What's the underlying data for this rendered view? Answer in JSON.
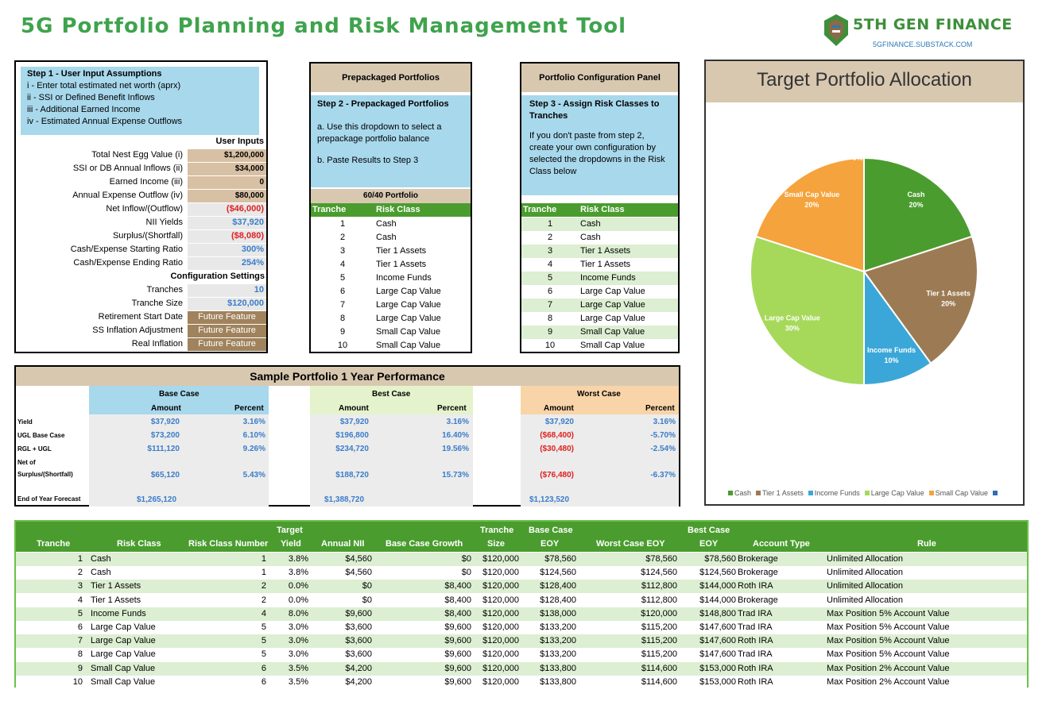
{
  "title": "5G Portfolio Planning and Risk Management Tool",
  "logo": {
    "name": "5TH GEN FINANCE",
    "sub": "5GFINANCE.SUBSTACK.COM"
  },
  "step1": {
    "heading": "Step 1 - User Input Assumptions",
    "lines": [
      "i - Enter total estimated net worth (aprx)",
      "ii - SSI or Defined Benefit Inflows",
      "iii - Additional Earned Income",
      "iv - Estimated Annual Expense Outflows"
    ],
    "user_inputs_label": "User Inputs",
    "rows": [
      {
        "label": "Total Nest Egg Value (i)",
        "value": "$1,200,000"
      },
      {
        "label": "SSI or DB Annual Inflows (ii)",
        "value": "$34,000"
      },
      {
        "label": "Earned Income (iii)",
        "value": "0"
      },
      {
        "label": "Annual Expense Outflow (iv)",
        "value": "$80,000"
      },
      {
        "label": "Net Inflow/(Outflow)",
        "value": "($46,000)"
      },
      {
        "label": "NII Yields",
        "value": "$37,920"
      },
      {
        "label": "Surplus/(Shortfall)",
        "value": "($8,080)"
      },
      {
        "label": "Cash/Expense Starting Ratio",
        "value": "300%"
      },
      {
        "label": "Cash/Expense Ending Ratio",
        "value": "254%"
      }
    ],
    "config_label": "Configuration Settings",
    "config_rows": [
      {
        "label": "Tranches",
        "value": "10"
      },
      {
        "label": "Tranche Size",
        "value": "$120,000"
      },
      {
        "label": "Retirement Start Date",
        "value": "Future Feature"
      },
      {
        "label": "SS Inflation Adjustment",
        "value": "Future Feature"
      },
      {
        "label": "Real Inflation",
        "value": "Future Feature"
      }
    ]
  },
  "step2": {
    "panel_title": "Prepackaged Portfolios",
    "heading": "Step 2 - Prepackaged Portfolios",
    "line_a": "a. Use this dropdown to select a prepackage portfolio balance",
    "line_b": "b. Paste Results to Step 3",
    "selected": "60/40 Portfolio",
    "col_tranche": "Tranche",
    "col_risk": "Risk Class",
    "rows": [
      {
        "n": "1",
        "c": "Cash"
      },
      {
        "n": "2",
        "c": "Cash"
      },
      {
        "n": "3",
        "c": "Tier 1 Assets"
      },
      {
        "n": "4",
        "c": "Tier 1 Assets"
      },
      {
        "n": "5",
        "c": "Income Funds"
      },
      {
        "n": "6",
        "c": "Large Cap Value"
      },
      {
        "n": "7",
        "c": "Large Cap Value"
      },
      {
        "n": "8",
        "c": "Large Cap Value"
      },
      {
        "n": "9",
        "c": "Small Cap Value"
      },
      {
        "n": "10",
        "c": "Small Cap Value"
      }
    ]
  },
  "step3": {
    "panel_title": "Portfolio Configuration Panel",
    "heading": "Step 3 - Assign Risk Classes to Tranches",
    "text": "If you don't paste from step 2, create your own configuration by selected the dropdowns in the Risk Class below",
    "col_tranche": "Tranche",
    "col_risk": "Risk Class",
    "rows": [
      {
        "n": "1",
        "c": "Cash"
      },
      {
        "n": "2",
        "c": "Cash"
      },
      {
        "n": "3",
        "c": "Tier 1 Assets"
      },
      {
        "n": "4",
        "c": "Tier 1 Assets"
      },
      {
        "n": "5",
        "c": "Income Funds"
      },
      {
        "n": "6",
        "c": "Large Cap Value"
      },
      {
        "n": "7",
        "c": "Large Cap Value"
      },
      {
        "n": "8",
        "c": "Large Cap Value"
      },
      {
        "n": "9",
        "c": "Small Cap Value"
      },
      {
        "n": "10",
        "c": "Small Cap Value"
      }
    ]
  },
  "sample": {
    "title": "Sample Portfolio 1 Year Performance",
    "base": "Base Case",
    "best": "Best Case",
    "worst": "Worst Case",
    "amount": "Amount",
    "percent": "Percent",
    "row_labels": [
      "Yield",
      "UGL Base Case",
      "RGL + UGL",
      "Net of",
      "Surplus/(Shortfall)",
      "End of Year Forecast"
    ],
    "base_vals": [
      [
        "$37,920",
        "3.16%"
      ],
      [
        "$73,200",
        "6.10%"
      ],
      [
        "$111,120",
        "9.26%"
      ],
      [
        "$65,120",
        "5.43%"
      ],
      [
        "$1,265,120",
        ""
      ]
    ],
    "best_vals": [
      [
        "$37,920",
        "3.16%"
      ],
      [
        "$196,800",
        "16.40%"
      ],
      [
        "$234,720",
        "19.56%"
      ],
      [
        "$188,720",
        "15.73%"
      ],
      [
        "$1,388,720",
        ""
      ]
    ],
    "worst_vals": [
      [
        "$37,920",
        "3.16%"
      ],
      [
        "($68,400)",
        "-5.70%"
      ],
      [
        "($30,480)",
        "-2.54%"
      ],
      [
        "($76,480)",
        "-6.37%"
      ],
      [
        "$1,123,520",
        ""
      ]
    ]
  },
  "chart_data": {
    "type": "pie",
    "title": "Target Portfolio Allocation",
    "labels": [
      "Cash",
      "Tier 1 Assets",
      "Income Funds",
      "Large Cap Value",
      "Small Cap Value",
      ""
    ],
    "values": [
      20,
      20,
      10,
      30,
      20,
      0
    ],
    "colors": [
      "#4a9c2e",
      "#9c7b54",
      "#3ba7d8",
      "#a6d95a",
      "#f5a33c",
      "#2f6db5"
    ],
    "legend": "bottom"
  },
  "tranche_table": {
    "headers": {
      "tranche": "Tranche",
      "risk_class": "Risk Class",
      "risk_num": "Risk Class Number",
      "target": "Target",
      "yield": "Yield",
      "nii": "Annual NII",
      "base_growth": "Base Case Growth",
      "tranche2": "Tranche",
      "size": "Size",
      "base_case": "Base Case",
      "eoy": "EOY",
      "worst_eoy": "Worst Case EOY",
      "best_case": "Best Case",
      "eoy2": "EOY",
      "account": "Account Type",
      "rule": "Rule"
    },
    "rows": [
      {
        "t": "1",
        "rc": "Cash",
        "rn": "1",
        "y": "3.8%",
        "nii": "$4,560",
        "bg": "$0",
        "sz": "$120,000",
        "be": "$78,560",
        "we": "$78,560",
        "bs": "$78,560",
        "acct": "Brokerage",
        "rule": "Unlimited Allocation"
      },
      {
        "t": "2",
        "rc": "Cash",
        "rn": "1",
        "y": "3.8%",
        "nii": "$4,560",
        "bg": "$0",
        "sz": "$120,000",
        "be": "$124,560",
        "we": "$124,560",
        "bs": "$124,560",
        "acct": "Brokerage",
        "rule": "Unlimited Allocation"
      },
      {
        "t": "3",
        "rc": "Tier 1 Assets",
        "rn": "2",
        "y": "0.0%",
        "nii": "$0",
        "bg": "$8,400",
        "sz": "$120,000",
        "be": "$128,400",
        "we": "$112,800",
        "bs": "$144,000",
        "acct": "Roth IRA",
        "rule": "Unlimited Allocation"
      },
      {
        "t": "4",
        "rc": "Tier 1 Assets",
        "rn": "2",
        "y": "0.0%",
        "nii": "$0",
        "bg": "$8,400",
        "sz": "$120,000",
        "be": "$128,400",
        "we": "$112,800",
        "bs": "$144,000",
        "acct": "Brokerage",
        "rule": "Unlimited Allocation"
      },
      {
        "t": "5",
        "rc": "Income Funds",
        "rn": "4",
        "y": "8.0%",
        "nii": "$9,600",
        "bg": "$8,400",
        "sz": "$120,000",
        "be": "$138,000",
        "we": "$120,000",
        "bs": "$148,800",
        "acct": "Trad IRA",
        "rule": "Max Position 5% Account Value"
      },
      {
        "t": "6",
        "rc": "Large Cap Value",
        "rn": "5",
        "y": "3.0%",
        "nii": "$3,600",
        "bg": "$9,600",
        "sz": "$120,000",
        "be": "$133,200",
        "we": "$115,200",
        "bs": "$147,600",
        "acct": "Trad IRA",
        "rule": "Max Position 5% Account Value"
      },
      {
        "t": "7",
        "rc": "Large Cap Value",
        "rn": "5",
        "y": "3.0%",
        "nii": "$3,600",
        "bg": "$9,600",
        "sz": "$120,000",
        "be": "$133,200",
        "we": "$115,200",
        "bs": "$147,600",
        "acct": "Roth IRA",
        "rule": "Max Position 5% Account Value"
      },
      {
        "t": "8",
        "rc": "Large Cap Value",
        "rn": "5",
        "y": "3.0%",
        "nii": "$3,600",
        "bg": "$9,600",
        "sz": "$120,000",
        "be": "$133,200",
        "we": "$115,200",
        "bs": "$147,600",
        "acct": "Trad IRA",
        "rule": "Max Position 5% Account Value"
      },
      {
        "t": "9",
        "rc": "Small Cap Value",
        "rn": "6",
        "y": "3.5%",
        "nii": "$4,200",
        "bg": "$9,600",
        "sz": "$120,000",
        "be": "$133,800",
        "we": "$114,600",
        "bs": "$153,000",
        "acct": "Roth IRA",
        "rule": "Max Position 2% Account Value"
      },
      {
        "t": "10",
        "rc": "Small Cap Value",
        "rn": "6",
        "y": "3.5%",
        "nii": "$4,200",
        "bg": "$9,600",
        "sz": "$120,000",
        "be": "$133,800",
        "we": "$114,600",
        "bs": "$153,000",
        "acct": "Roth IRA",
        "rule": "Max Position 2% Account Value"
      }
    ]
  }
}
